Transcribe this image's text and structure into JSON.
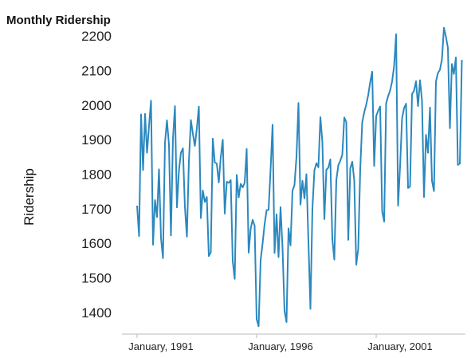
{
  "title": "Monthly Ridership",
  "chart_data": {
    "type": "line",
    "title": "Monthly Ridership",
    "xlabel": "",
    "ylabel": "Ridership",
    "x_start": "January, 1991",
    "x_frequency": "monthly",
    "xticks": [
      "January, 1991",
      "January, 1996",
      "January, 2001"
    ],
    "yticks": [
      1400,
      1500,
      1600,
      1700,
      1800,
      1900,
      2000,
      2100,
      2200
    ],
    "ylim": [
      1335,
      2235
    ],
    "grid": false,
    "color": "#2b88be",
    "series": [
      {
        "values": [
          1709,
          1621,
          1973,
          1812,
          1975,
          1862,
          1940,
          2013,
          1596,
          1725,
          1676,
          1814,
          1615,
          1557,
          1891,
          1956,
          1885,
          1623,
          1903,
          1997,
          1704,
          1810,
          1862,
          1875,
          1705,
          1619,
          1837,
          1957,
          1917,
          1882,
          1933,
          1996,
          1673,
          1753,
          1720,
          1734,
          1563,
          1574,
          1903,
          1834,
          1831,
          1776,
          1850,
          1900,
          1686,
          1778,
          1775,
          1783,
          1548,
          1497,
          1798,
          1733,
          1772,
          1762,
          1775,
          1873,
          1573,
          1642,
          1668,
          1651,
          1381,
          1360,
          1551,
          1600,
          1655,
          1696,
          1697,
          1814,
          1943,
          1572,
          1684,
          1560,
          1705,
          1587,
          1405,
          1372,
          1643,
          1594,
          1752,
          1769,
          1850,
          2006,
          1712,
          1781,
          1730,
          1800,
          1604,
          1410,
          1700,
          1811,
          1832,
          1820,
          1965,
          1893,
          1670,
          1813,
          1819,
          1843,
          1612,
          1553,
          1783,
          1826,
          1839,
          1856,
          1964,
          1951,
          1610,
          1817,
          1836,
          1782,
          1538,
          1585,
          1814,
          1950,
          1979,
          2001,
          2029,
          2066,
          2097,
          1824,
          1968,
          1984,
          1996,
          1693,
          1663,
          2005,
          2026,
          2042,
          2069,
          2113,
          2205,
          1709,
          1823,
          1962,
          1991,
          2004,
          1760,
          1764,
          2032,
          2042,
          2069,
          1997,
          2072,
          2013,
          1734,
          1914,
          1862,
          1993,
          1781,
          1751,
          2068,
          2093,
          2102,
          2132,
          2224,
          2198,
          2166,
          1933,
          2119,
          2090,
          2138,
          1827,
          1831,
          2131
        ]
      }
    ]
  }
}
